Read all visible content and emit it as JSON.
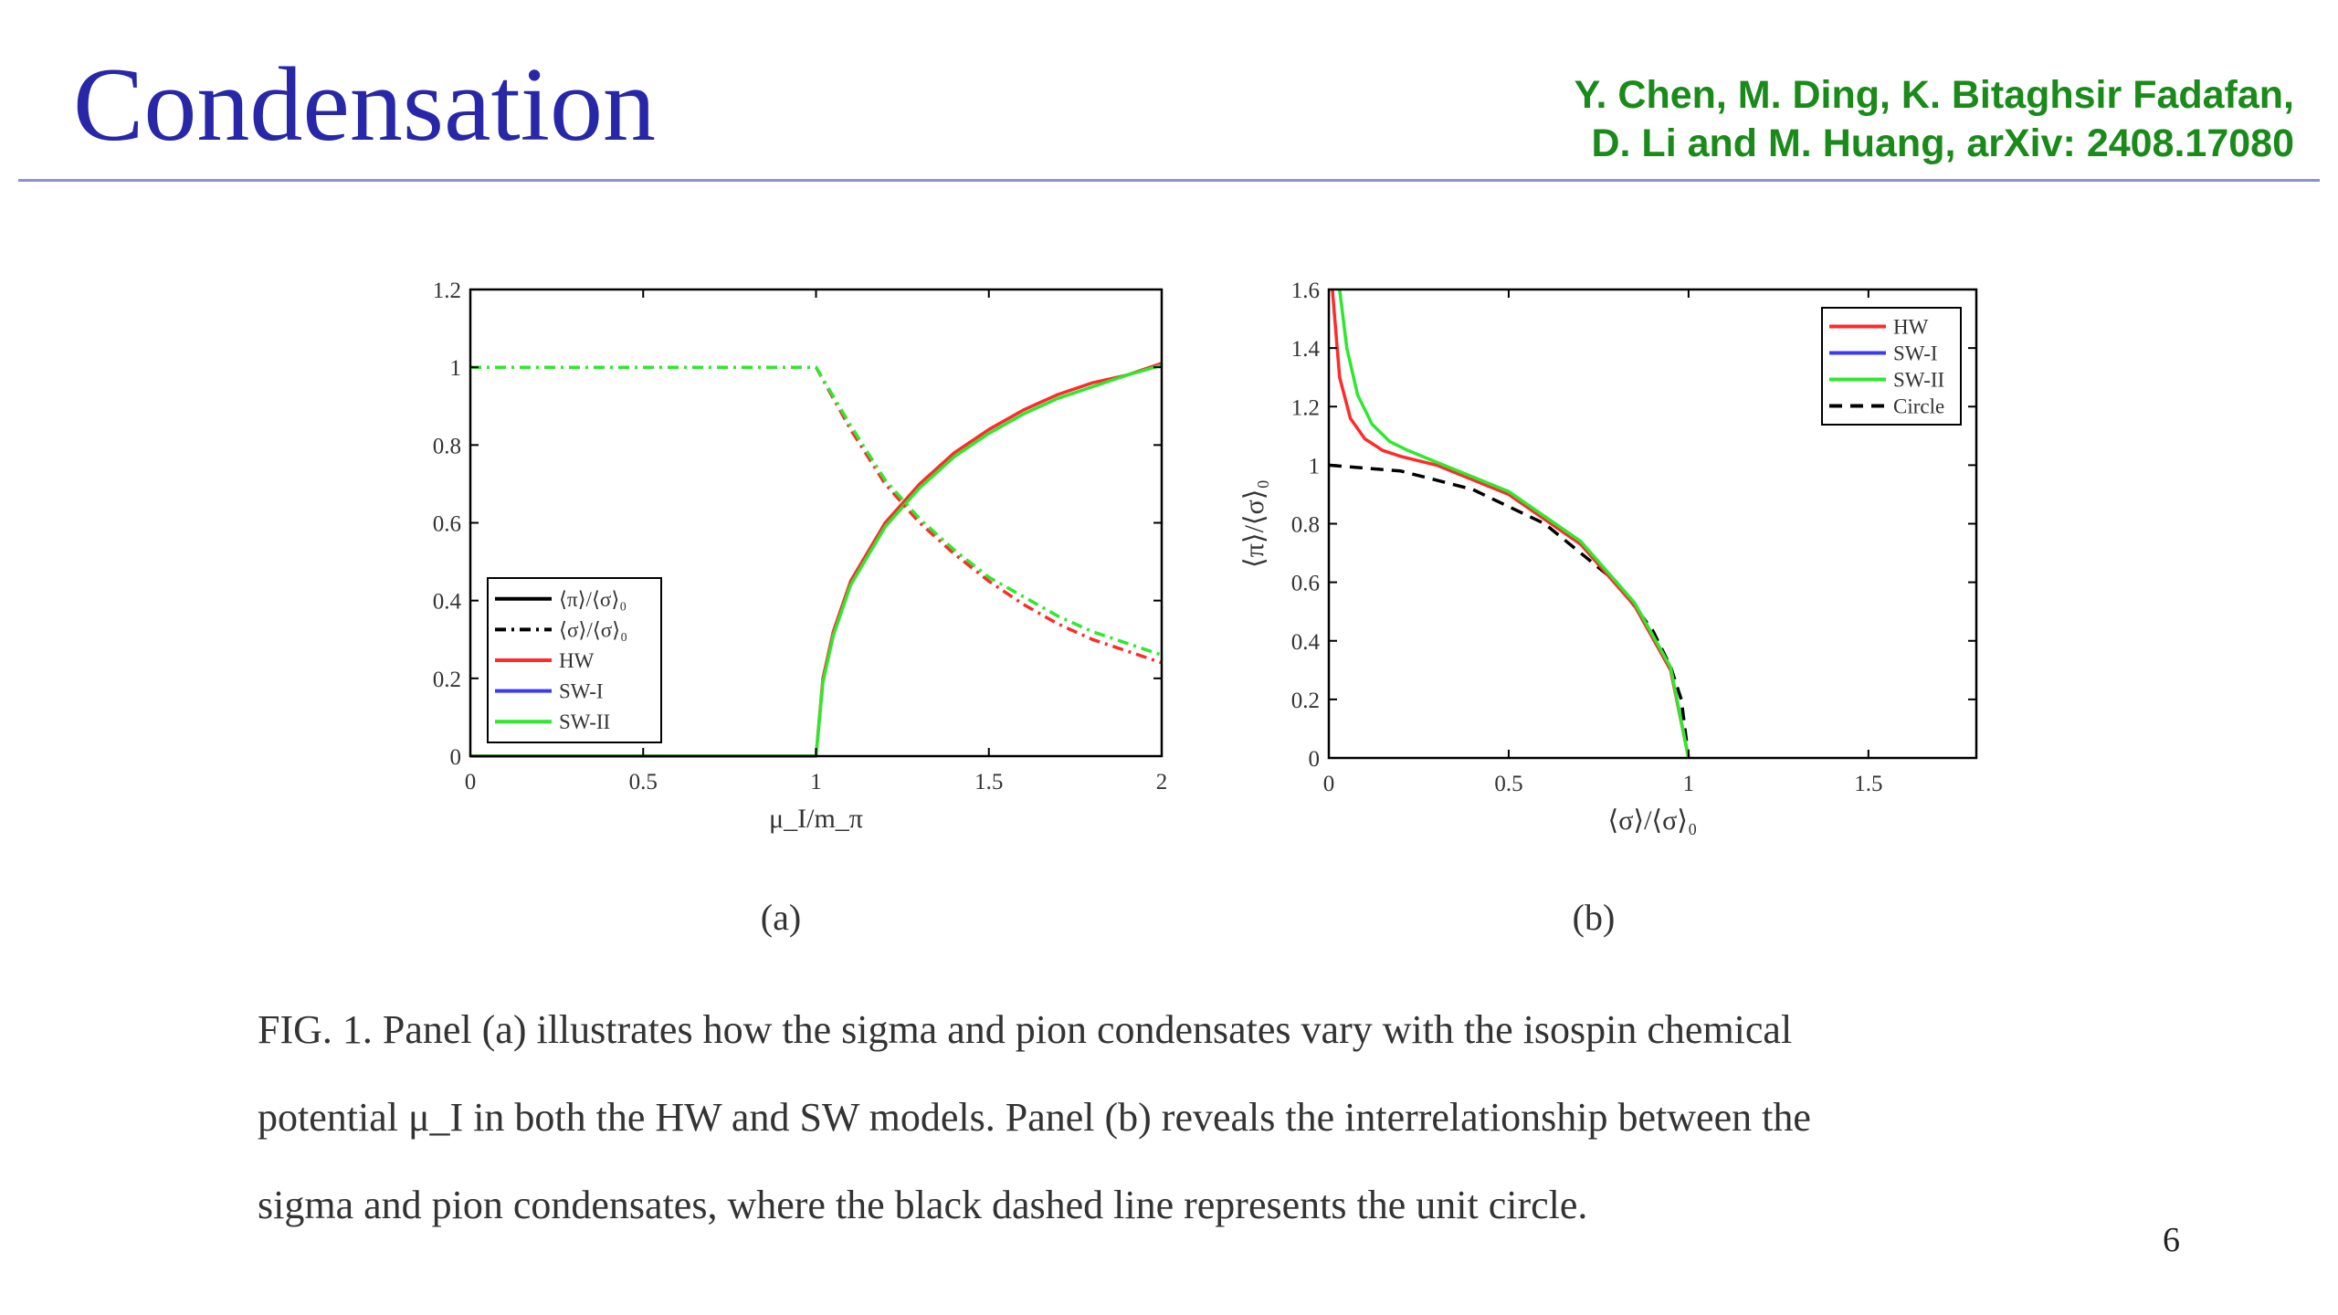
{
  "slide": {
    "title": "Condensation",
    "authors": [
      "Y. Chen, M. Ding, K. Bitaghsir Fadafan,",
      "D. Li and M. Huang, arXiv: 2408.17080"
    ],
    "page_number": "6",
    "colors": {
      "title": "#2727a8",
      "authors": "#1a8a1a",
      "rule": "#8e8ed6"
    }
  },
  "caption": {
    "line1": "FIG. 1.  Panel (a) illustrates how the sigma and pion condensates vary with the isospin chemical",
    "line2": "potential μ_I in both the HW and SW models. Panel (b) reveals the interrelationship between the",
    "line3": "sigma and pion condensates, where the black dashed line represents the unit circle."
  },
  "chart_data": [
    {
      "type": "line",
      "panel_label": "(a)",
      "xlabel": "μ_I/m_π",
      "ylabel": "",
      "xlim": [
        0,
        2
      ],
      "ylim": [
        0,
        1.2
      ],
      "xticks": [
        "0",
        "0.5",
        "1",
        "1.5",
        "2"
      ],
      "yticks": [
        "0",
        "0.2",
        "0.4",
        "0.6",
        "0.8",
        "1",
        "1.2"
      ],
      "legend": {
        "placement": "bottom-left",
        "entries": [
          {
            "label": "⟨π⟩/⟨σ⟩₀",
            "color": "#000000",
            "style": "solid"
          },
          {
            "label": "⟨σ⟩/⟨σ⟩₀",
            "color": "#000000",
            "style": "dashdot"
          },
          {
            "label": "HW",
            "color": "#ff2a2a",
            "style": "solid"
          },
          {
            "label": "SW-I",
            "color": "#3a3aff",
            "style": "solid"
          },
          {
            "label": "SW-II",
            "color": "#2ee82e",
            "style": "solid"
          }
        ]
      },
      "series": [
        {
          "name": "HW",
          "quantity": "⟨π⟩/⟨σ⟩₀",
          "color": "#ff2a2a",
          "dash": "solid",
          "x": [
            0,
            1.0,
            1.0,
            1.02,
            1.05,
            1.1,
            1.2,
            1.3,
            1.4,
            1.5,
            1.6,
            1.7,
            1.8,
            1.9,
            2.0
          ],
          "y": [
            0,
            0,
            0,
            0.2,
            0.32,
            0.45,
            0.6,
            0.7,
            0.78,
            0.84,
            0.89,
            0.93,
            0.96,
            0.98,
            1.01
          ]
        },
        {
          "name": "SW-II",
          "quantity": "⟨π⟩/⟨σ⟩₀",
          "color": "#2ee82e",
          "dash": "solid",
          "x": [
            0,
            1.0,
            1.0,
            1.02,
            1.05,
            1.1,
            1.2,
            1.3,
            1.4,
            1.5,
            1.6,
            1.7,
            1.8,
            1.9,
            2.0
          ],
          "y": [
            0,
            0,
            0,
            0.19,
            0.31,
            0.44,
            0.59,
            0.69,
            0.77,
            0.83,
            0.88,
            0.92,
            0.95,
            0.98,
            1.005
          ]
        },
        {
          "name": "HW",
          "quantity": "⟨σ⟩/⟨σ⟩₀",
          "color": "#ff2a2a",
          "dash": "dashdot",
          "x": [
            0,
            1.0,
            1.1,
            1.2,
            1.3,
            1.4,
            1.5,
            1.6,
            1.7,
            1.8,
            1.9,
            2.0
          ],
          "y": [
            1,
            1,
            0.84,
            0.7,
            0.6,
            0.52,
            0.45,
            0.39,
            0.34,
            0.3,
            0.27,
            0.24
          ]
        },
        {
          "name": "SW-II",
          "quantity": "⟨σ⟩/⟨σ⟩₀",
          "color": "#2ee82e",
          "dash": "dashdot",
          "x": [
            0,
            1.0,
            1.1,
            1.2,
            1.3,
            1.4,
            1.5,
            1.6,
            1.7,
            1.8,
            1.9,
            2.0
          ],
          "y": [
            1,
            1,
            0.85,
            0.71,
            0.61,
            0.53,
            0.46,
            0.41,
            0.36,
            0.32,
            0.29,
            0.26
          ]
        }
      ]
    },
    {
      "type": "line",
      "panel_label": "(b)",
      "xlabel": "⟨σ⟩/⟨σ⟩₀",
      "ylabel": "⟨π⟩/⟨σ⟩₀",
      "xlim": [
        0,
        1.8
      ],
      "ylim": [
        0,
        1.6
      ],
      "xticks": [
        "0",
        "0.5",
        "1",
        "1.5"
      ],
      "yticks": [
        "0",
        "0.2",
        "0.4",
        "0.6",
        "0.8",
        "1",
        "1.2",
        "1.4",
        "1.6"
      ],
      "legend": {
        "placement": "top-right",
        "entries": [
          {
            "label": "HW",
            "color": "#ff2a2a",
            "style": "solid"
          },
          {
            "label": "SW-I",
            "color": "#3a3aff",
            "style": "solid"
          },
          {
            "label": "SW-II",
            "color": "#2ee82e",
            "style": "solid"
          },
          {
            "label": "Circle",
            "color": "#000000",
            "style": "dashed"
          }
        ]
      },
      "series": [
        {
          "name": "Circle",
          "color": "#000000",
          "dash": "dashed",
          "x": [
            0,
            0.2,
            0.4,
            0.6,
            0.8,
            0.9,
            0.95,
            0.98,
            1.0
          ],
          "y": [
            1.0,
            0.98,
            0.917,
            0.8,
            0.6,
            0.436,
            0.312,
            0.199,
            0
          ]
        },
        {
          "name": "HW",
          "color": "#ff2a2a",
          "dash": "solid",
          "x": [
            0.01,
            0.03,
            0.06,
            0.1,
            0.15,
            0.2,
            0.3,
            0.5,
            0.7,
            0.85,
            0.95,
            1.0
          ],
          "y": [
            1.6,
            1.3,
            1.16,
            1.09,
            1.05,
            1.03,
            1.0,
            0.9,
            0.73,
            0.52,
            0.3,
            0
          ]
        },
        {
          "name": "SW-II",
          "color": "#2ee82e",
          "dash": "solid",
          "x": [
            0.03,
            0.05,
            0.08,
            0.12,
            0.17,
            0.22,
            0.3,
            0.5,
            0.7,
            0.85,
            0.95,
            1.0
          ],
          "y": [
            1.6,
            1.4,
            1.24,
            1.14,
            1.08,
            1.05,
            1.01,
            0.91,
            0.74,
            0.53,
            0.31,
            0
          ]
        }
      ]
    }
  ]
}
